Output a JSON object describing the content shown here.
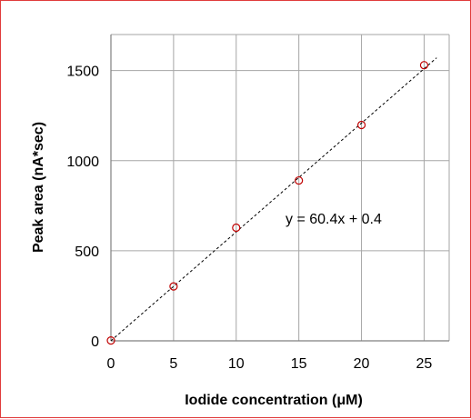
{
  "chart_data": {
    "type": "scatter",
    "xlabel": "Iodide concentration (μM)",
    "ylabel": "Peak area (nA*sec)",
    "x_ticks": [
      "0",
      "5",
      "10",
      "15",
      "20",
      "25"
    ],
    "y_ticks": [
      "0",
      "500",
      "1000",
      "1500"
    ],
    "xlim": [
      0,
      27
    ],
    "ylim": [
      0,
      1700
    ],
    "grid": true,
    "series": [
      {
        "x": [
          0,
          5,
          10,
          15,
          20,
          25
        ],
        "y": [
          2,
          302,
          628,
          890,
          1198,
          1530
        ],
        "marker": "open-circle",
        "color": "#c00000"
      }
    ],
    "trendline": {
      "type": "linear",
      "slope": 60.4,
      "intercept": 0.4,
      "x_range": [
        0,
        26
      ],
      "style": "dashed",
      "color": "#000000",
      "equation_label": "y = 60.4x + 0.4"
    }
  }
}
